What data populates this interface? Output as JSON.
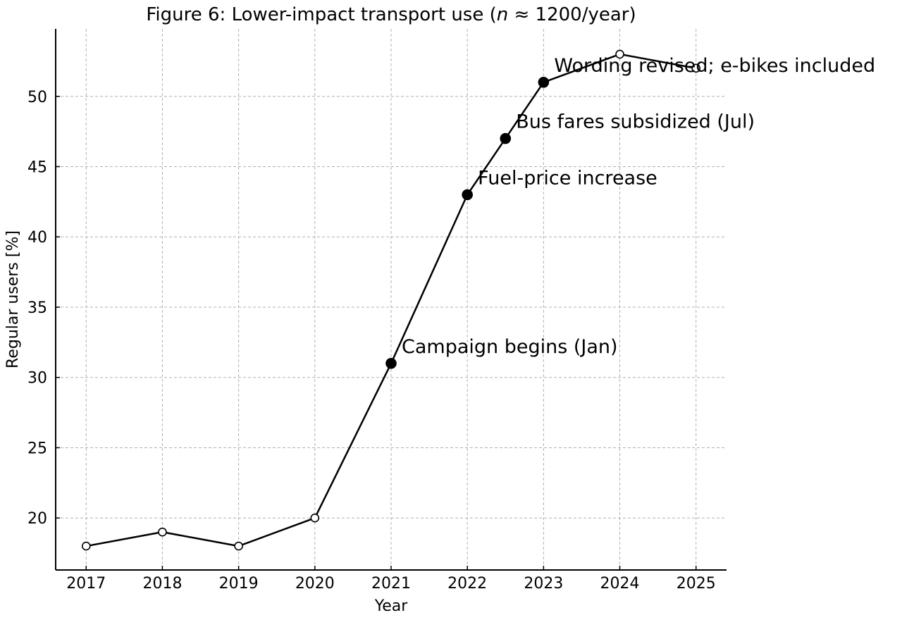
{
  "chart_data": {
    "type": "line",
    "title_pre": "Figure 6: Lower-impact transport use (",
    "title_n": "n",
    "title_post": " ≈ 1200/year)",
    "xlabel": "Year",
    "ylabel": "Regular users [%]",
    "xlim": [
      2016.6,
      2025.4
    ],
    "ylim": [
      16.3,
      54.8
    ],
    "xticks": [
      2017,
      2018,
      2019,
      2020,
      2021,
      2022,
      2023,
      2024,
      2025
    ],
    "yticks": [
      20,
      25,
      30,
      35,
      40,
      45,
      50
    ],
    "grid": true,
    "series": [
      {
        "points": [
          {
            "x": 2017,
            "y": 18,
            "marker": "open"
          },
          {
            "x": 2018,
            "y": 19,
            "marker": "open"
          },
          {
            "x": 2019,
            "y": 18,
            "marker": "open"
          },
          {
            "x": 2020,
            "y": 20,
            "marker": "open"
          },
          {
            "x": 2021,
            "y": 31,
            "marker": "filled"
          },
          {
            "x": 2022,
            "y": 43,
            "marker": "filled"
          },
          {
            "x": 2022.5,
            "y": 47,
            "marker": "filled"
          },
          {
            "x": 2023,
            "y": 51,
            "marker": "filled"
          },
          {
            "x": 2024,
            "y": 53,
            "marker": "open"
          },
          {
            "x": 2025,
            "y": 52,
            "marker": "open"
          }
        ]
      }
    ],
    "annotations": [
      {
        "x": 2021,
        "y": 31,
        "text": "Campaign begins (Jan)"
      },
      {
        "x": 2022,
        "y": 43,
        "text": "Fuel-price increase"
      },
      {
        "x": 2022.5,
        "y": 47,
        "text": "Bus fares subsidized (Jul)"
      },
      {
        "x": 2023,
        "y": 51,
        "text": "Wording revised; e-bikes included"
      }
    ]
  }
}
